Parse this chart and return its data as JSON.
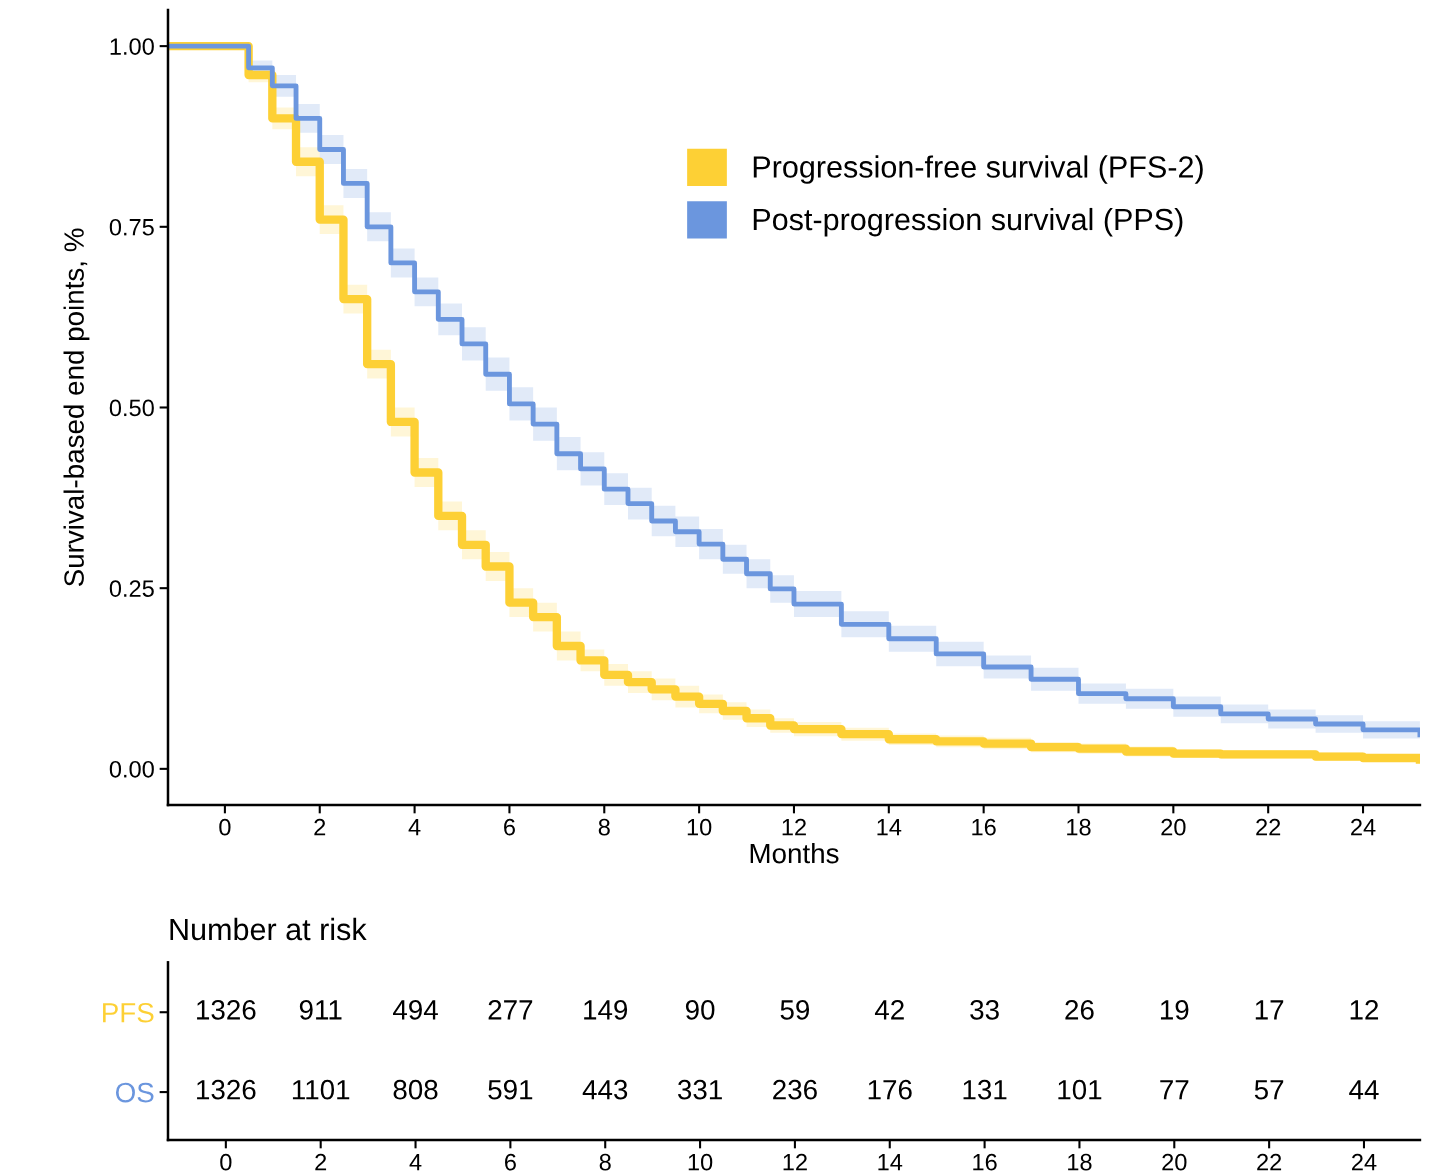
{
  "chart_data": [
    {
      "type": "step",
      "ylabel": "Survival-based end points, %",
      "xlabel": "Months",
      "x": [
        -1.2,
        0.1,
        0.5,
        1,
        1.5,
        2,
        2.5,
        3,
        3.5,
        4,
        4.5,
        5,
        5.5,
        6,
        6.5,
        7,
        7.5,
        8,
        8.5,
        9,
        9.5,
        10,
        10.5,
        11,
        11.5,
        12,
        13,
        14,
        15,
        16,
        17,
        18,
        19,
        20,
        21,
        22,
        23,
        24,
        25.2
      ],
      "series": [
        {
          "name": "Progression-free survival (PFS-2)",
          "color": "#fdd035",
          "values": [
            1,
            1,
            0.96,
            0.9,
            0.84,
            0.76,
            0.65,
            0.56,
            0.48,
            0.41,
            0.35,
            0.31,
            0.28,
            0.23,
            0.21,
            0.17,
            0.15,
            0.13,
            0.12,
            0.11,
            0.1,
            0.09,
            0.08,
            0.07,
            0.06,
            0.055,
            0.048,
            0.041,
            0.038,
            0.035,
            0.03,
            0.028,
            0.024,
            0.021,
            0.02,
            0.02,
            0.017,
            0.015,
            0.013
          ],
          "lower": [
            1,
            1,
            0.95,
            0.885,
            0.82,
            0.74,
            0.63,
            0.54,
            0.46,
            0.39,
            0.33,
            0.29,
            0.26,
            0.21,
            0.19,
            0.15,
            0.135,
            0.115,
            0.105,
            0.095,
            0.085,
            0.077,
            0.068,
            0.058,
            0.05,
            0.045,
            0.039,
            0.033,
            0.03,
            0.027,
            0.023,
            0.021,
            0.017,
            0.015,
            0.014,
            0.014,
            0.011,
            0.01,
            0.008
          ],
          "upper": [
            1,
            1,
            0.97,
            0.915,
            0.86,
            0.78,
            0.67,
            0.58,
            0.5,
            0.43,
            0.37,
            0.33,
            0.3,
            0.25,
            0.23,
            0.19,
            0.165,
            0.145,
            0.135,
            0.125,
            0.115,
            0.103,
            0.092,
            0.082,
            0.07,
            0.065,
            0.057,
            0.049,
            0.046,
            0.043,
            0.037,
            0.035,
            0.031,
            0.027,
            0.026,
            0.026,
            0.023,
            0.02,
            0.018
          ]
        },
        {
          "name": "Post-progression survival (PPS)",
          "color": "#6b96de",
          "values": [
            1,
            1,
            0.97,
            0.945,
            0.9,
            0.857,
            0.81,
            0.75,
            0.7,
            0.66,
            0.622,
            0.588,
            0.546,
            0.505,
            0.477,
            0.436,
            0.415,
            0.387,
            0.367,
            0.343,
            0.328,
            0.311,
            0.29,
            0.27,
            0.249,
            0.228,
            0.2,
            0.18,
            0.159,
            0.141,
            0.124,
            0.104,
            0.097,
            0.086,
            0.076,
            0.069,
            0.062,
            0.054,
            0.047
          ],
          "lower": [
            1,
            1,
            0.96,
            0.93,
            0.88,
            0.837,
            0.79,
            0.73,
            0.68,
            0.64,
            0.6,
            0.565,
            0.523,
            0.482,
            0.454,
            0.413,
            0.392,
            0.365,
            0.345,
            0.322,
            0.307,
            0.29,
            0.27,
            0.25,
            0.23,
            0.21,
            0.182,
            0.162,
            0.142,
            0.125,
            0.108,
            0.09,
            0.083,
            0.072,
            0.063,
            0.056,
            0.05,
            0.042,
            0.035
          ],
          "upper": [
            1,
            1,
            0.98,
            0.96,
            0.92,
            0.877,
            0.83,
            0.77,
            0.72,
            0.68,
            0.644,
            0.611,
            0.569,
            0.528,
            0.5,
            0.459,
            0.438,
            0.409,
            0.389,
            0.364,
            0.349,
            0.332,
            0.31,
            0.29,
            0.268,
            0.246,
            0.218,
            0.198,
            0.176,
            0.157,
            0.14,
            0.118,
            0.111,
            0.1,
            0.089,
            0.082,
            0.074,
            0.066,
            0.059
          ]
        }
      ],
      "xlim": [
        -1.2,
        25.2
      ],
      "xticks": [
        0,
        2,
        4,
        6,
        8,
        10,
        12,
        14,
        16,
        18,
        20,
        22,
        24
      ],
      "ylim": [
        -0.05,
        1.05
      ],
      "yticks": [
        {
          "value": 0,
          "label": "0.00"
        },
        {
          "value": 0.25,
          "label": "0.25"
        },
        {
          "value": 0.5,
          "label": "0.50"
        },
        {
          "value": 0.75,
          "label": "0.75"
        },
        {
          "value": 1,
          "label": "1.00"
        }
      ],
      "legend": "top right",
      "grid": false
    },
    {
      "type": "heatmap",
      "title": "Number at risk",
      "categories": [
        "0",
        "2",
        "4",
        "6",
        "8",
        "10",
        "12",
        "14",
        "16",
        "18",
        "20",
        "22",
        "24"
      ],
      "y_categories": [
        "PFS",
        "OS"
      ],
      "cells": [
        [
          1326,
          911,
          494,
          277,
          149,
          90,
          59,
          42,
          33,
          26,
          19,
          17,
          12
        ],
        [
          1326,
          1101,
          808,
          591,
          443,
          331,
          236,
          176,
          131,
          101,
          77,
          57,
          44
        ]
      ],
      "data_labels": true
    }
  ]
}
